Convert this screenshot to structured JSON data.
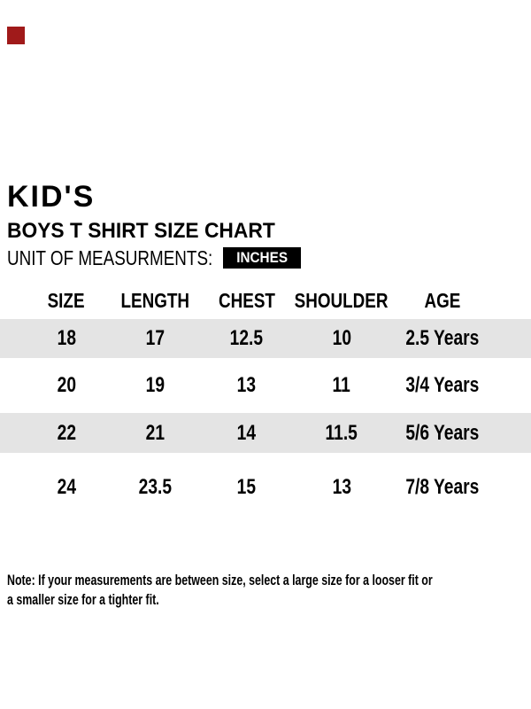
{
  "header": {
    "title": "KID'S",
    "subtitle": "BOYS T SHIRT SIZE CHART",
    "unit_label": "UNIT OF MEASURMENTS:",
    "unit_value": "INCHES"
  },
  "table": {
    "columns": [
      "SIZE",
      "LENGTH",
      "CHEST",
      "SHOULDER",
      "AGE"
    ],
    "rows": [
      [
        "18",
        "17",
        "12.5",
        "10",
        "2.5 Years"
      ],
      [
        "20",
        "19",
        "13",
        "11",
        "3/4 Years"
      ],
      [
        "22",
        "21",
        "14",
        "11.5",
        "5/6 Years"
      ],
      [
        "24",
        "23.5",
        "15",
        "13",
        "7/8 Years"
      ]
    ]
  },
  "note": {
    "line1": "Note: If your measurements are between size, select a large size for a looser fit or",
    "line2": "a smaller size for a tighter fit."
  },
  "colors": {
    "text": "#000000",
    "row_stripe": "#e4e4e4",
    "unit_badge_bg": "#000000",
    "unit_badge_text": "#ffffff",
    "corner_marker": "#a01a1a"
  }
}
